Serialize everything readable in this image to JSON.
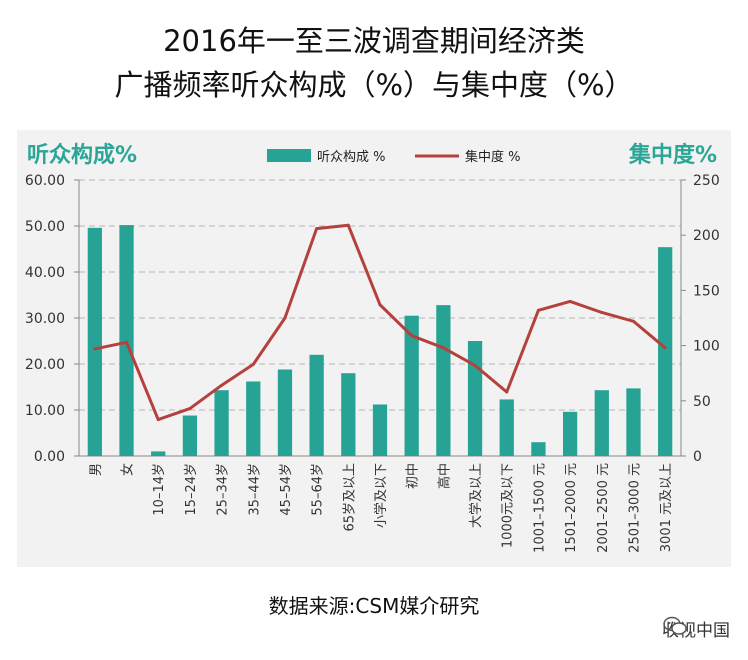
{
  "title_line1": "2016年一至三波调查期间经济类",
  "title_line2": "广播频率听众构成（%）与集中度（%）",
  "source": "数据来源:CSM媒介研究",
  "watermark": "收视中国",
  "colors": {
    "bar": "#26a394",
    "line": "#b5413e",
    "panel": "#f2f2f2",
    "axis_label": "#2ba596"
  },
  "chart_data": {
    "type": "bar+line",
    "title": "2016年一至三波调查期间经济类广播频率听众构成（%）与集中度（%）",
    "categories": [
      "男",
      "女",
      "10–14岁",
      "15–24岁",
      "25–34岁",
      "35–44岁",
      "45–54岁",
      "55–64岁",
      "65岁及以上",
      "小学及以下",
      "初中",
      "高中",
      "大学及以上",
      "1000元及以下",
      "1001–1500 元",
      "1501–2000 元",
      "2001–2500 元",
      "2501–3000 元",
      "3001 元及以上"
    ],
    "left_axis": {
      "label": "听众构成%",
      "min": 0,
      "max": 60,
      "ticks": [
        "0.00",
        "10.00",
        "20.00",
        "30.00",
        "40.00",
        "50.00",
        "60.00"
      ]
    },
    "right_axis": {
      "label": "集中度%",
      "min": 0,
      "max": 250,
      "ticks": [
        "0",
        "50",
        "100",
        "150",
        "200",
        "250"
      ]
    },
    "series": [
      {
        "name": "听众构成  %",
        "type": "bar",
        "axis": "left",
        "values": [
          49.6,
          50.2,
          1.0,
          8.8,
          14.3,
          16.2,
          18.8,
          22.0,
          18.0,
          11.2,
          30.5,
          32.8,
          25.0,
          12.3,
          3.0,
          9.6,
          14.3,
          14.7,
          45.4
        ]
      },
      {
        "name": "集中度  %",
        "type": "line",
        "axis": "right",
        "values": [
          97,
          103,
          33,
          43,
          64,
          83,
          125,
          206,
          209,
          137,
          109,
          98,
          82,
          58,
          132,
          140,
          130,
          122,
          98
        ]
      }
    ]
  }
}
